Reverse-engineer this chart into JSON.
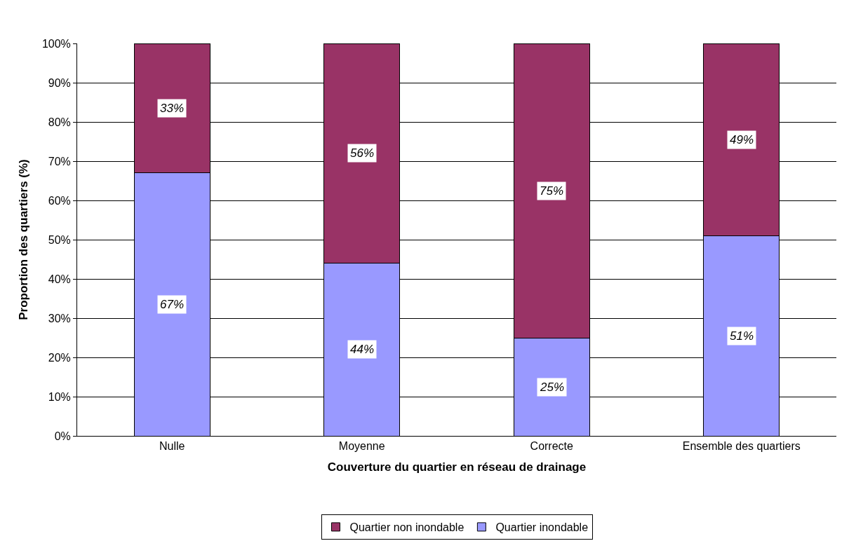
{
  "chart_data": {
    "type": "bar",
    "stacked": true,
    "xlabel": "Couverture du quartier en réseau de drainage",
    "ylabel": "Proportion des quartiers (%)",
    "categories": [
      "Nulle",
      "Moyenne",
      "Correcte",
      "Ensemble des quartiers"
    ],
    "series": [
      {
        "name": "Quartier inondable",
        "color": "#9999ff",
        "values": [
          67,
          44,
          25,
          51
        ],
        "value_labels": [
          "67%",
          "44%",
          "25%",
          "51%"
        ]
      },
      {
        "name": "Quartier non inondable",
        "color": "#993366",
        "values": [
          33,
          56,
          75,
          49
        ],
        "value_labels": [
          "33%",
          "56%",
          "75%",
          "49%"
        ]
      }
    ],
    "ylim": [
      0,
      100
    ],
    "yticks": [
      {
        "value": 0,
        "label": "0%"
      },
      {
        "value": 10,
        "label": "10%"
      },
      {
        "value": 20,
        "label": "20%"
      },
      {
        "value": 30,
        "label": "30%"
      },
      {
        "value": 40,
        "label": "40%"
      },
      {
        "value": 50,
        "label": "50%"
      },
      {
        "value": 60,
        "label": "60%"
      },
      {
        "value": 70,
        "label": "70%"
      },
      {
        "value": 80,
        "label": "80%"
      },
      {
        "value": 90,
        "label": "90%"
      },
      {
        "value": 100,
        "label": "100%"
      }
    ],
    "grid": "y",
    "legend": "bottom"
  }
}
